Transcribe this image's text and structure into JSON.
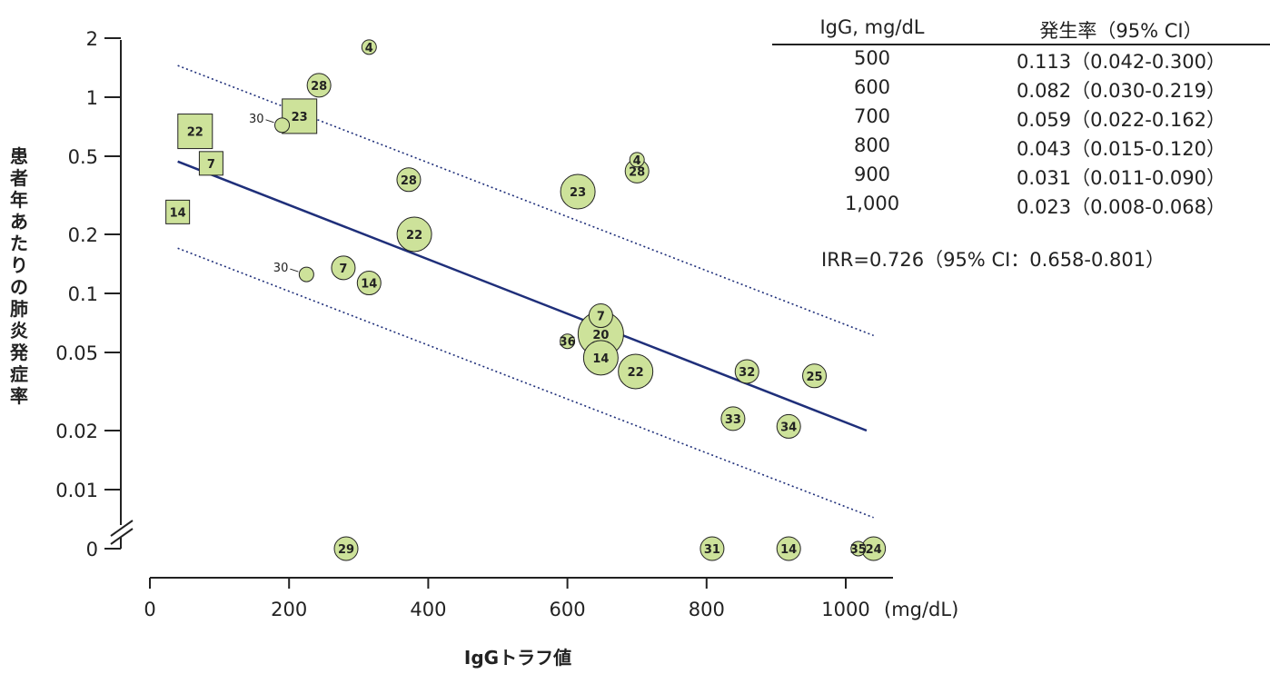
{
  "chart_data": {
    "type": "scatter",
    "xlabel": "IgGトラフ値",
    "ylabel": "患者年あたりの肺炎発症率",
    "x_unit": "(mg/dL)",
    "x_ticks": [
      0,
      200,
      400,
      600,
      800,
      1000
    ],
    "y_scale": "log",
    "y_ticks": [
      {
        "value": 2,
        "label": "2"
      },
      {
        "value": 1,
        "label": "1"
      },
      {
        "value": 0.5,
        "label": "0.5"
      },
      {
        "value": 0.2,
        "label": "0.2"
      },
      {
        "value": 0.1,
        "label": "0.1"
      },
      {
        "value": 0.05,
        "label": "0.05"
      },
      {
        "value": 0.02,
        "label": "0.02"
      },
      {
        "value": 0.01,
        "label": "0.01"
      },
      {
        "value": 0,
        "label": "0"
      }
    ],
    "y_axis_break": "between 0.01 and 0",
    "xlim": [
      0,
      1060
    ],
    "ylim": [
      0.0045,
      2.2
    ],
    "points": [
      {
        "x": 315,
        "y": 1.8,
        "label": "4",
        "marker": "circle",
        "size": "small"
      },
      {
        "x": 243,
        "y": 1.15,
        "label": "28",
        "marker": "circle",
        "size": "medium"
      },
      {
        "x": 190,
        "y": 0.72,
        "label": "30",
        "marker": "circle",
        "size": "small",
        "callout": true
      },
      {
        "x": 215,
        "y": 0.8,
        "label": "23",
        "marker": "square",
        "size": "large"
      },
      {
        "x": 65,
        "y": 0.67,
        "label": "22",
        "marker": "square",
        "size": "large"
      },
      {
        "x": 88,
        "y": 0.46,
        "label": "7",
        "marker": "square",
        "size": "medium"
      },
      {
        "x": 40,
        "y": 0.26,
        "label": "14",
        "marker": "square",
        "size": "medium"
      },
      {
        "x": 372,
        "y": 0.38,
        "label": "28",
        "marker": "circle",
        "size": "medium"
      },
      {
        "x": 615,
        "y": 0.33,
        "label": "23",
        "marker": "circle",
        "size": "large"
      },
      {
        "x": 700,
        "y": 0.48,
        "label": "4",
        "marker": "circle",
        "size": "small"
      },
      {
        "x": 700,
        "y": 0.42,
        "label": "28",
        "marker": "circle",
        "size": "medium"
      },
      {
        "x": 380,
        "y": 0.2,
        "label": "22",
        "marker": "circle",
        "size": "large"
      },
      {
        "x": 225,
        "y": 0.125,
        "label": "30",
        "marker": "circle",
        "size": "small",
        "callout": true
      },
      {
        "x": 278,
        "y": 0.135,
        "label": "7",
        "marker": "circle",
        "size": "medium"
      },
      {
        "x": 315,
        "y": 0.113,
        "label": "14",
        "marker": "circle",
        "size": "medium"
      },
      {
        "x": 648,
        "y": 0.077,
        "label": "7",
        "marker": "circle",
        "size": "medium"
      },
      {
        "x": 648,
        "y": 0.062,
        "label": "20",
        "marker": "circle",
        "size": "xlarge"
      },
      {
        "x": 600,
        "y": 0.057,
        "label": "36",
        "marker": "circle",
        "size": "small"
      },
      {
        "x": 648,
        "y": 0.047,
        "label": "14",
        "marker": "circle",
        "size": "large"
      },
      {
        "x": 698,
        "y": 0.04,
        "label": "22",
        "marker": "circle",
        "size": "large"
      },
      {
        "x": 858,
        "y": 0.04,
        "label": "32",
        "marker": "circle",
        "size": "medium"
      },
      {
        "x": 955,
        "y": 0.038,
        "label": "25",
        "marker": "circle",
        "size": "medium"
      },
      {
        "x": 838,
        "y": 0.023,
        "label": "33",
        "marker": "circle",
        "size": "medium"
      },
      {
        "x": 918,
        "y": 0.021,
        "label": "34",
        "marker": "circle",
        "size": "medium"
      },
      {
        "x": 282,
        "y": 0,
        "label": "29",
        "marker": "circle",
        "size": "medium"
      },
      {
        "x": 808,
        "y": 0,
        "label": "31",
        "marker": "circle",
        "size": "medium"
      },
      {
        "x": 918,
        "y": 0,
        "label": "14",
        "marker": "circle",
        "size": "medium"
      },
      {
        "x": 1018,
        "y": 0,
        "label": "35",
        "marker": "circle",
        "size": "small"
      },
      {
        "x": 1040,
        "y": 0,
        "label": "24",
        "marker": "circle",
        "size": "medium"
      }
    ],
    "regression": {
      "x": [
        40,
        1030
      ],
      "y": [
        0.47,
        0.02
      ]
    },
    "ci_upper": {
      "x": [
        40,
        1040
      ],
      "y": [
        1.45,
        0.061
      ]
    },
    "ci_lower": {
      "x": [
        40,
        1040
      ],
      "y": [
        0.17,
        0.0072
      ]
    },
    "colors": {
      "marker_fill": "#cde29a",
      "marker_stroke": "#222222",
      "regression": "#1f2f7a",
      "ci": "#1f2f7a"
    }
  },
  "table": {
    "headers": [
      "IgG, mg/dL",
      "発生率（95% CI）"
    ],
    "rows": [
      [
        "500",
        "0.113（0.042-0.300）"
      ],
      [
        "600",
        "0.082（0.030-0.219）"
      ],
      [
        "700",
        "0.059（0.022-0.162）"
      ],
      [
        "800",
        "0.043（0.015-0.120）"
      ],
      [
        "900",
        "0.031（0.011-0.090）"
      ],
      [
        "1,000",
        "0.023（0.008-0.068）"
      ]
    ]
  },
  "irr_text": "IRR=0.726（95% CI：0.658-0.801）"
}
